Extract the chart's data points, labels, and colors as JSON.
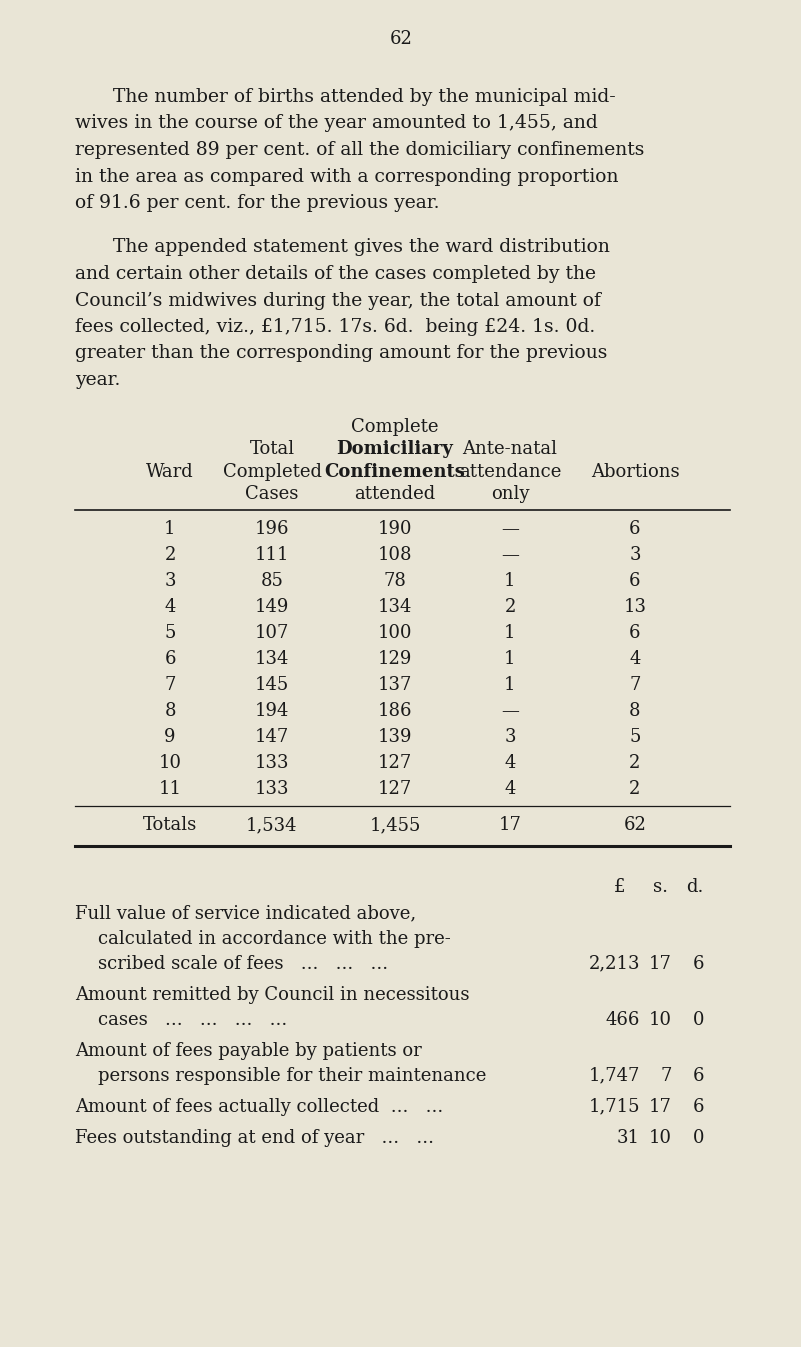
{
  "page_number": "62",
  "bg_color": "#e9e5d6",
  "text_color": "#1a1a1a",
  "para1_lines": [
    "The number of births attended by the municipal mid-",
    "wives in the course of the year amounted to 1,455, and",
    "represented 89 per cent. of all the domiciliary confinements",
    "in the area as compared with a corresponding proportion",
    "of 91.6 per cent. for the previous year."
  ],
  "para2_lines": [
    "The appended statement gives the ward distribution",
    "and certain other details of the cases completed by the",
    "Council’s midwives during the year, the total amount of",
    "fees collected, viz., £1,715. 17s. 6d.  being £24. 1s. 0d.",
    "greater than the corresponding amount for the previous",
    "year."
  ],
  "header_line1": [
    "",
    "",
    "Complete",
    "",
    ""
  ],
  "header_line2": [
    "",
    "Total",
    "Domiciliary",
    "Ante-natal",
    ""
  ],
  "header_line3": [
    "Ward",
    "Completed",
    "Confinements",
    "attendance",
    "Abortions"
  ],
  "header_line4": [
    "",
    "Cases",
    "attended",
    "only",
    ""
  ],
  "header_bold_rows": [
    1,
    2
  ],
  "table_data": [
    [
      "1",
      "196",
      "190",
      "—",
      "6"
    ],
    [
      "2",
      "111",
      "108",
      "—",
      "3"
    ],
    [
      "3",
      "85",
      "78",
      "1",
      "6"
    ],
    [
      "4",
      "149",
      "134",
      "2",
      "13"
    ],
    [
      "5",
      "107",
      "100",
      "1",
      "6"
    ],
    [
      "6",
      "134",
      "129",
      "1",
      "4"
    ],
    [
      "7",
      "145",
      "137",
      "1",
      "7"
    ],
    [
      "8",
      "194",
      "186",
      "—",
      "8"
    ],
    [
      "9",
      "147",
      "139",
      "3",
      "5"
    ],
    [
      "10",
      "133",
      "127",
      "4",
      "2"
    ],
    [
      "11",
      "133",
      "127",
      "4",
      "2"
    ]
  ],
  "totals_row": [
    "Totals",
    "1,534",
    "1,455",
    "17",
    "62"
  ],
  "fin_label1a": "Full value of service indicated above,",
  "fin_label1b": "    calculated in accordance with the pre-",
  "fin_label1c": "    scribed scale of fees   ...   ...   ...",
  "fin_val1": [
    "2,213",
    "17",
    "6"
  ],
  "fin_label2a": "Amount remitted by Council in necessitous",
  "fin_label2b": "    cases   ...   ...   ...   ...",
  "fin_val2": [
    "466",
    "10",
    "0"
  ],
  "fin_label3a": "Amount of fees payable by patients or",
  "fin_label3b": "    persons responsible for their maintenance",
  "fin_val3": [
    "1,747",
    "7",
    "6"
  ],
  "fin_label4": "Amount of fees actually collected  ...   ...",
  "fin_val4": [
    "1,715",
    "17",
    "6"
  ],
  "fin_label5": "Fees outstanding at end of year   ...   ...",
  "fin_val5": [
    "31",
    "10",
    "0"
  ]
}
